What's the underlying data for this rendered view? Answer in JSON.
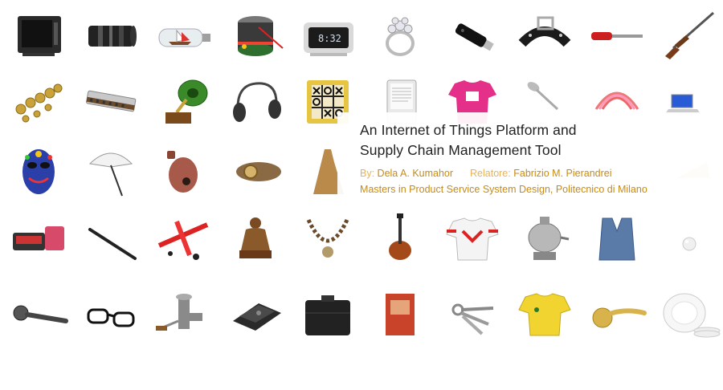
{
  "slide": {
    "title_line1": "An Internet of Things Platform and",
    "title_line2": "Supply Chain Management Tool",
    "by_label": "By:",
    "author": "Dela A. Kumahor",
    "supervisor_label": "Relatore:",
    "supervisor": "Fabrizio M. Pierandrei",
    "program": "Masters in Product Service System Design, Politecnico di Milano",
    "clock_display": "8:32",
    "objects": [
      "tv-icon",
      "camera-lens-icon",
      "ship-in-bottle-icon",
      "drum-icon",
      "alarm-clock-icon",
      "ring-icon",
      "usb-drive-icon",
      "belt-icon",
      "screwdriver-icon",
      "rifle-icon",
      "gold-chain-icon",
      "harmonica-icon",
      "gramophone-icon",
      "headphones-icon",
      "tic-tac-toe-icon",
      "ereader-icon",
      "tshirt-icon",
      "spoon-icon",
      "slinky-icon",
      "laptop-icon",
      "mask-icon",
      "umbrella-icon",
      "ocarina-icon",
      "bread-icon",
      "dress-icon",
      "fan-icon",
      "phone-icon",
      "pen-icon",
      "toy-plane-icon",
      "buddha-icon",
      "necklace-icon",
      "guitar-icon",
      "jersey-icon",
      "samovar-icon",
      "vest-icon",
      "pearl-icon",
      "microphone-icon",
      "glasses-icon",
      "meat-grinder-icon",
      "hole-punch-icon",
      "case-icon",
      "book-icon",
      "keys-icon",
      "yellow-shirt-icon",
      "door-handle-icon",
      "plates-icon"
    ]
  }
}
